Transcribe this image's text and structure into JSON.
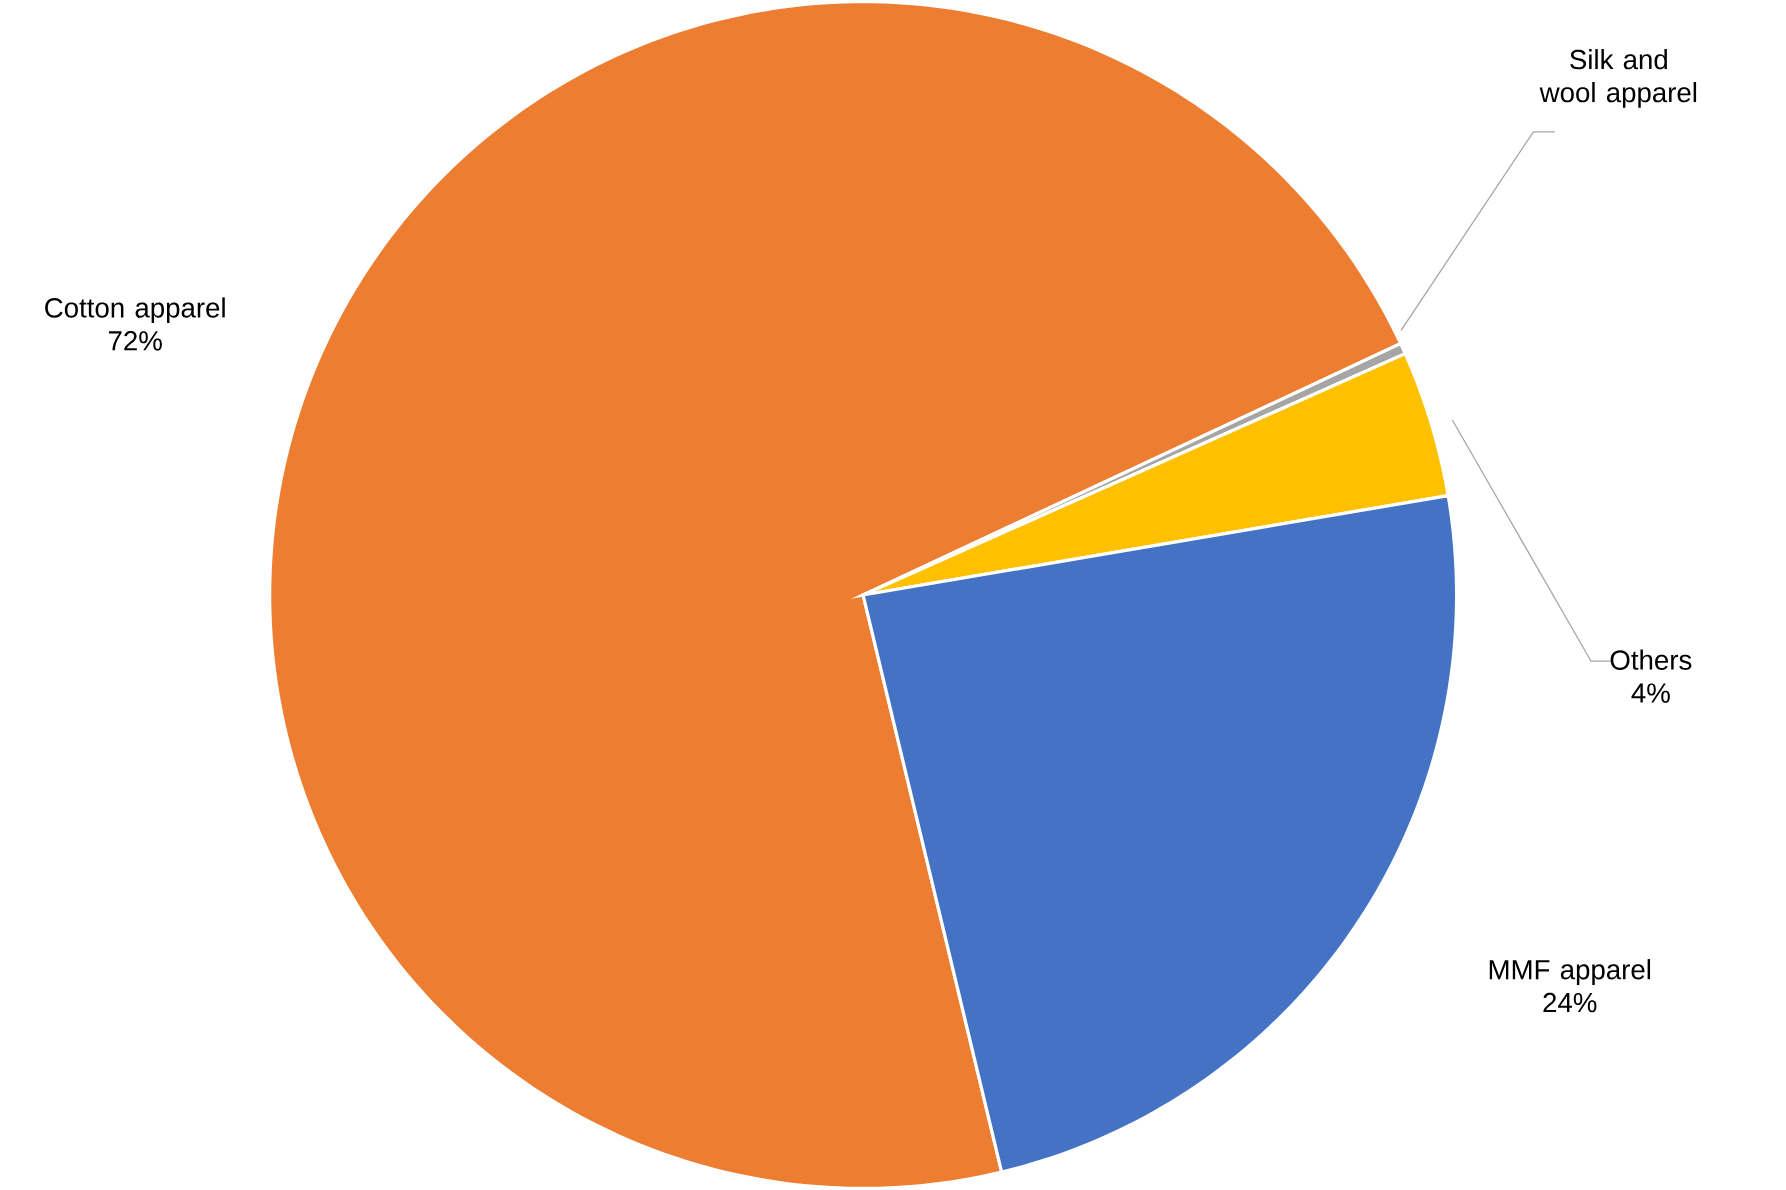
{
  "chart_data": {
    "type": "pie",
    "categories": [
      "Cotton apparel",
      "Silk and wool apparel",
      "Others",
      "MMF apparel"
    ],
    "values": [
      72,
      0.3,
      4,
      24
    ],
    "colors": [
      "#ed7d31",
      "#a5a5a5",
      "#ffc000",
      "#4472c4"
    ],
    "value_labels": [
      "72%",
      null,
      "4%",
      "24%"
    ]
  }
}
